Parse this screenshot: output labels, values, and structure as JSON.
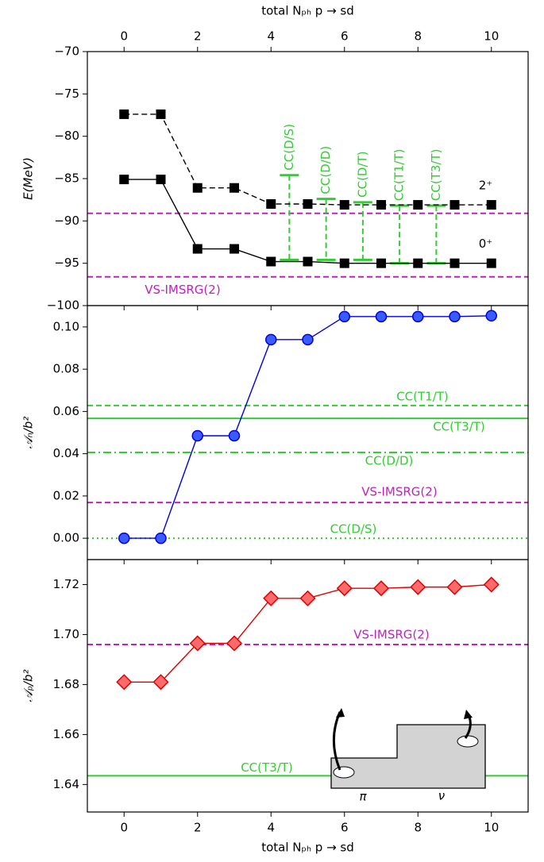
{
  "chart_data": [
    {
      "type": "line",
      "xlabel_top": "total Nₚₕ p → sd",
      "ylabel": "E(MeV)",
      "x": [
        0,
        1,
        2,
        3,
        4,
        5,
        6,
        7,
        8,
        9,
        10
      ],
      "xlim": [
        -1,
        11
      ],
      "xticks": [
        0,
        2,
        4,
        6,
        8,
        10
      ],
      "ylim": [
        -100,
        -70
      ],
      "yticks": [
        {
          "value": -100,
          "label": "−100"
        },
        {
          "value": -95,
          "label": "−95"
        },
        {
          "value": -90,
          "label": "−90"
        },
        {
          "value": -85,
          "label": "−85"
        },
        {
          "value": -80,
          "label": "−80"
        },
        {
          "value": -75,
          "label": "−75"
        },
        {
          "value": -70,
          "label": "−70"
        }
      ],
      "series": [
        {
          "name": "2⁺",
          "color": "#000000",
          "style": "dashed",
          "marker": "square",
          "values": [
            -77.4,
            -77.4,
            -86.1,
            -86.1,
            -88.0,
            -88.0,
            -88.1,
            -88.1,
            -88.1,
            -88.1,
            -88.1
          ]
        },
        {
          "name": "0⁺",
          "color": "#000000",
          "style": "solid",
          "marker": "square",
          "values": [
            -85.1,
            -85.1,
            -93.3,
            -93.3,
            -94.8,
            -94.8,
            -95.0,
            -95.0,
            -95.0,
            -95.0,
            -95.0
          ]
        }
      ],
      "hlines": [
        {
          "value": -89.1,
          "color": "#c020c0",
          "style": "dashed"
        },
        {
          "value": -96.6,
          "color": "#c020c0",
          "style": "dashed",
          "label": "VS-IMSRG(2)"
        }
      ],
      "error_bars": [
        {
          "label": "CC(D/S)",
          "x": 4.5,
          "top": -84.6,
          "bottom": -94.6,
          "color": "#33cc33"
        },
        {
          "label": "CC(D/D)",
          "x": 5.5,
          "top": -87.4,
          "bottom": -94.6,
          "color": "#33cc33"
        },
        {
          "label": "CC(D/T)",
          "x": 6.5,
          "top": -87.8,
          "bottom": -94.6,
          "color": "#33cc33"
        },
        {
          "label": "CC(T1/T)",
          "x": 7.5,
          "top": -88.2,
          "bottom": -95.0,
          "color": "#33cc33"
        },
        {
          "label": "CC(T3/T)",
          "x": 8.5,
          "top": -88.2,
          "bottom": -95.0,
          "color": "#33cc33"
        }
      ]
    },
    {
      "type": "line",
      "ylabel": "𝒜ₙ/b²",
      "x": [
        0,
        1,
        2,
        3,
        4,
        5,
        6,
        7,
        8,
        9,
        10
      ],
      "xlim": [
        -1,
        11
      ],
      "xticks": [
        0,
        2,
        4,
        6,
        8,
        10
      ],
      "ylim": [
        -0.0101,
        0.1101
      ],
      "yticks": [
        {
          "value": 0,
          "label": "0.00"
        },
        {
          "value": 0.02,
          "label": "0.02"
        },
        {
          "value": 0.04,
          "label": "0.04"
        },
        {
          "value": 0.06,
          "label": "0.06"
        },
        {
          "value": 0.08,
          "label": "0.08"
        },
        {
          "value": 0.1,
          "label": "0.10"
        }
      ],
      "series": [
        {
          "color": "#0000e0",
          "fill": "#3a5cff",
          "style": "solid",
          "marker": "circle",
          "values": [
            0,
            0,
            0.0485,
            0.0485,
            0.094,
            0.094,
            0.1049,
            0.1049,
            0.1049,
            0.1049,
            0.1053
          ]
        }
      ],
      "hlines": [
        {
          "value": 0.0628,
          "color": "#33cc33",
          "style": "dashed",
          "label": "CC(T1/T)"
        },
        {
          "value": 0.0567,
          "color": "#33cc33",
          "style": "solid",
          "label": "CC(T3/T)"
        },
        {
          "value": 0.0406,
          "color": "#33cc33",
          "style": "dashdot",
          "label": "CC(D/D)"
        },
        {
          "value": 0.0169,
          "color": "#c020c0",
          "style": "dashed",
          "label": "VS-IMSRG(2)"
        },
        {
          "value": 0,
          "color": "#33cc33",
          "style": "dotted",
          "label": "CC(D/S)"
        }
      ]
    },
    {
      "type": "line",
      "ylabel": "𝒜ₚ/b²",
      "xlabel": "total Nₚₕ p → sd",
      "x": [
        0,
        1,
        2,
        3,
        4,
        5,
        6,
        7,
        8,
        9,
        10
      ],
      "xlim": [
        -1,
        11
      ],
      "xticks": [
        0,
        2,
        4,
        6,
        8,
        10
      ],
      "ylim": [
        1.629,
        1.73
      ],
      "yticks": [
        1.64,
        1.66,
        1.68,
        {
          "value": 1.7,
          "label": "1.70"
        },
        1.72
      ],
      "series": [
        {
          "color": "#e00000",
          "fill": "#ff6a6a",
          "style": "solid",
          "marker": "diamond",
          "values": [
            1.681,
            1.681,
            1.6965,
            1.6965,
            1.7145,
            1.7145,
            1.7185,
            1.7185,
            1.719,
            1.719,
            1.72
          ]
        }
      ],
      "hlines": [
        {
          "value": 1.696,
          "color": "#c020c0",
          "style": "dashed",
          "label": "VS-IMSRG(2)"
        },
        {
          "value": 1.6435,
          "color": "#33cc33",
          "style": "solid",
          "label": "CC(T3/T)"
        }
      ],
      "inset_labels": [
        "π",
        "ν"
      ]
    }
  ]
}
